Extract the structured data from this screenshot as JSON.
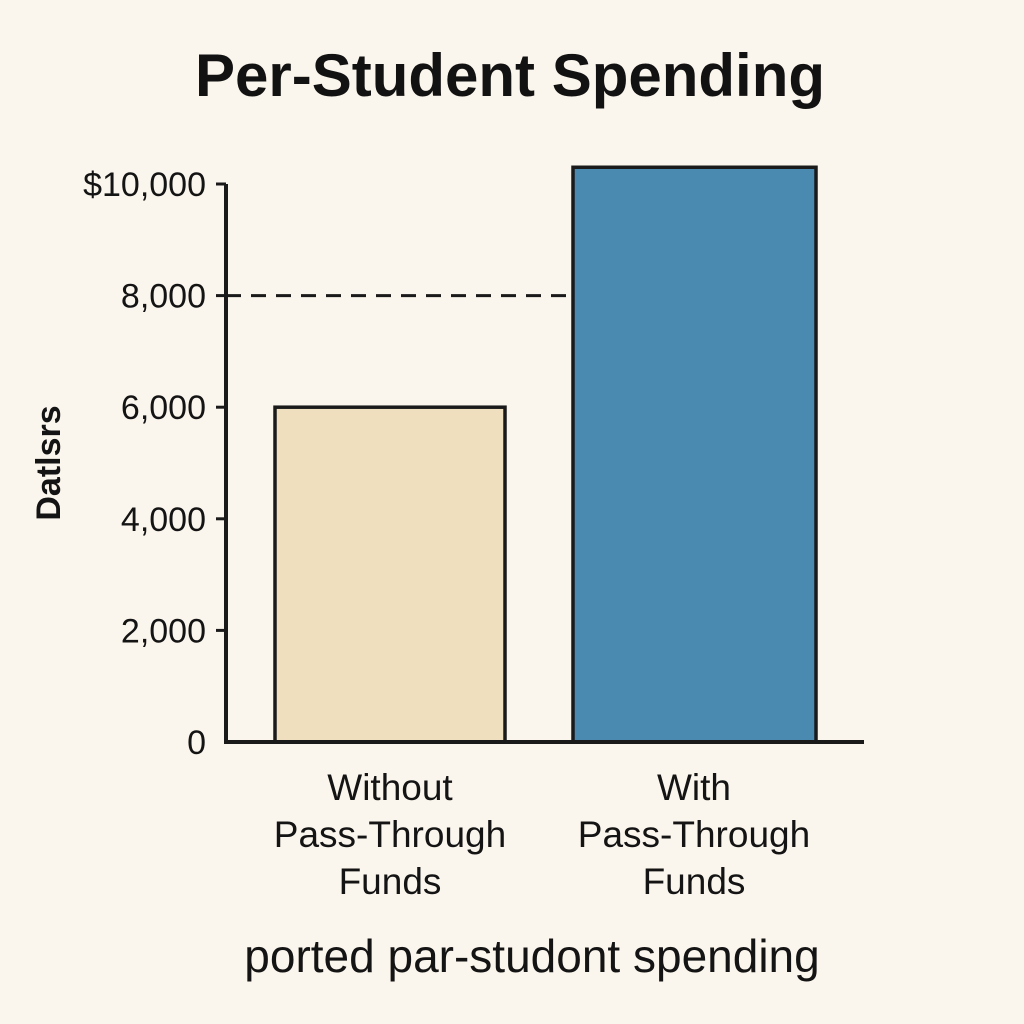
{
  "chart_data": {
    "type": "bar",
    "title": "Per-Student Spending",
    "ylabel": "Datlsrs",
    "xlabel": "",
    "caption": "ported par-studont spending",
    "categories": [
      "Without Pass-Through Funds",
      "With Pass-Through Funds"
    ],
    "category_lines": [
      [
        "Without",
        "Pass-Through",
        "Funds"
      ],
      [
        "With",
        "Pass-Through",
        "Funds"
      ]
    ],
    "values": [
      6000,
      10300
    ],
    "bar_colors": [
      "#f0dfbf",
      "#4a8ab0"
    ],
    "ylim": [
      0,
      10000
    ],
    "yticks": [
      0,
      2000,
      4000,
      6000,
      8000,
      10000
    ],
    "ytick_labels": [
      "0",
      "2,000",
      "4,000",
      "6,000",
      "8,000",
      "$10,000"
    ],
    "reference_line": {
      "value": 8000,
      "style": "dashed"
    },
    "grid": false,
    "legend": "none"
  }
}
